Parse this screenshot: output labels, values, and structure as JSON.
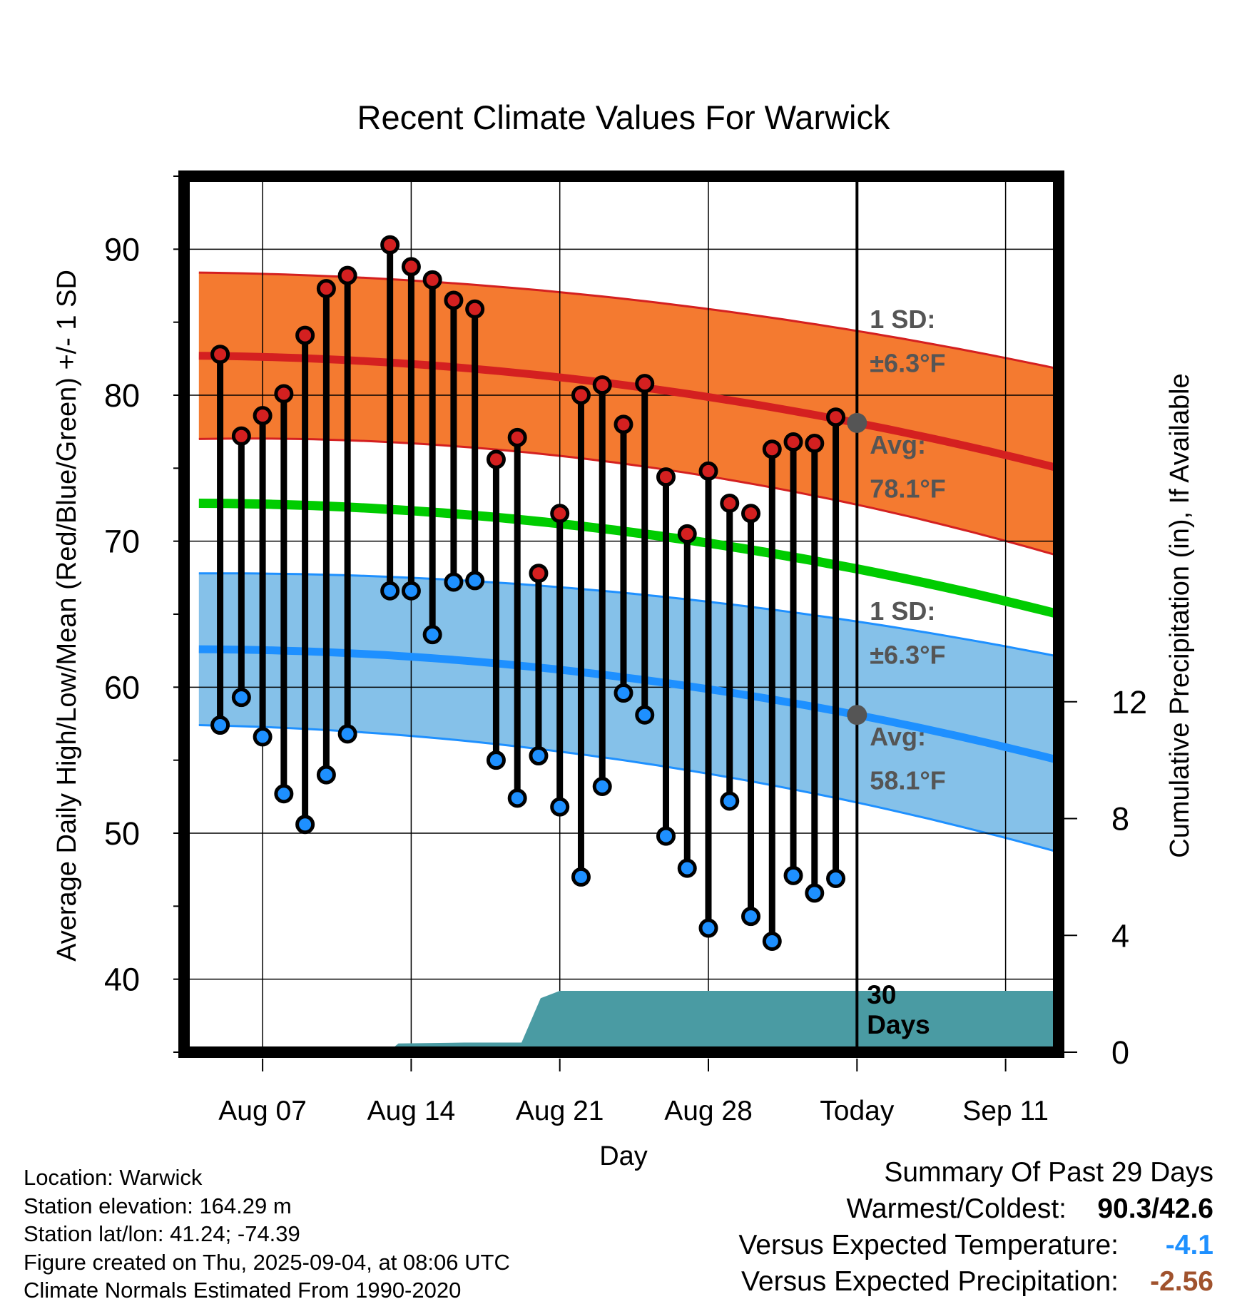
{
  "chart_data": {
    "type": "line",
    "title": "Recent Climate Values For Warwick",
    "xlabel": "Day",
    "ylabel": "Average Daily High/Low/Mean (Red/Blue/Green) +/- 1 SD",
    "y2label": "Cumulative Precipitation (in), If Available",
    "x_tick_labels": [
      "Aug 07",
      "Aug 14",
      "Aug 21",
      "Aug 28",
      "Today",
      "Sep 11"
    ],
    "x_tick_days": [
      7,
      14,
      21,
      28,
      35,
      42
    ],
    "xlim": [
      3.3,
      44.5
    ],
    "ylim": [
      35,
      95
    ],
    "yticks": [
      40,
      50,
      60,
      70,
      80,
      90
    ],
    "y2lim": [
      0,
      30
    ],
    "y2ticks": [
      0,
      4,
      8,
      12
    ],
    "grid": true,
    "today_day": 35,
    "today_label": "30\nDays",
    "normals": {
      "days": [
        4,
        35,
        44.5
      ],
      "high_avg": [
        82.7,
        78.1,
        75.0
      ],
      "high_sd_upper": [
        88.4,
        84.4,
        81.8
      ],
      "high_sd_lower": [
        77.0,
        72.5,
        69.0
      ],
      "low_avg": [
        62.6,
        58.1,
        55.0
      ],
      "low_sd_upper": [
        67.8,
        64.5,
        62.1
      ],
      "low_sd_lower": [
        57.4,
        52.1,
        48.7
      ],
      "mean_avg": [
        72.6,
        68.1,
        65.0
      ]
    },
    "annotations": {
      "high_sd": {
        "line1": "1 SD:",
        "line2": "±6.3°F"
      },
      "high_avg": {
        "line1": "Avg:",
        "line2": "78.1°F"
      },
      "low_sd": {
        "line1": "1 SD:",
        "line2": "±6.3°F"
      },
      "low_avg": {
        "line1": "Avg:",
        "line2": "58.1°F"
      }
    },
    "series": [
      {
        "name": "High",
        "days": [
          5,
          6,
          7,
          8,
          9,
          10,
          11,
          13,
          14,
          15,
          16,
          17,
          18,
          19,
          20,
          21,
          22,
          23,
          24,
          25,
          26,
          27,
          28,
          29,
          30,
          31,
          32,
          33,
          34
        ],
        "values": [
          82.8,
          77.2,
          78.6,
          80.1,
          84.1,
          87.3,
          88.2,
          90.3,
          88.8,
          87.9,
          86.5,
          85.9,
          75.6,
          77.1,
          67.8,
          71.9,
          80.0,
          80.7,
          78.0,
          80.8,
          74.4,
          70.5,
          74.8,
          72.6,
          71.9,
          76.3,
          76.8,
          76.7,
          78.5
        ]
      },
      {
        "name": "Low",
        "days": [
          5,
          6,
          7,
          8,
          9,
          10,
          11,
          13,
          14,
          15,
          16,
          17,
          18,
          19,
          20,
          21,
          22,
          23,
          24,
          25,
          26,
          27,
          28,
          29,
          30,
          31,
          32,
          33,
          34
        ],
        "values": [
          57.4,
          59.3,
          56.6,
          52.7,
          50.6,
          54.0,
          56.8,
          66.6,
          66.6,
          63.6,
          67.2,
          67.3,
          55.0,
          52.4,
          55.3,
          51.8,
          47.0,
          53.2,
          59.6,
          58.1,
          49.8,
          47.6,
          43.5,
          52.2,
          44.3,
          42.6,
          47.1,
          45.9,
          46.9
        ]
      }
    ],
    "precip": {
      "days": [
        3.3,
        12.9,
        13.4,
        16.5,
        19.2,
        20.1,
        21.0,
        44.5
      ],
      "values": [
        0,
        0,
        0.3,
        0.33,
        0.33,
        1.85,
        2.1,
        2.1
      ]
    }
  },
  "info": {
    "location": "Location: Warwick",
    "elevation": "Station elevation: 164.29 m",
    "latlon": "Station lat/lon: 41.24; -74.39",
    "created": "Figure created on Thu, 2025-09-04, at 08:06 UTC",
    "normals": "Climate Normals Estimated From 1990-2020"
  },
  "summary": {
    "title": "Summary Of Past 29 Days",
    "warmest_label": "Warmest/Coldest:",
    "warmest_value": "90.3/42.6",
    "temp_label": "Versus Expected Temperature:",
    "temp_value": "-4.1",
    "temp_color": "#1e90ff",
    "precip_label": "Versus Expected Precipitation:",
    "precip_value": "-2.56",
    "precip_color": "#a0522d"
  },
  "colors": {
    "high_band": "#f47a30",
    "high_line": "#d42020",
    "low_band": "#85c1e9",
    "low_line": "#1e90ff",
    "mean_line": "#00cc00",
    "precip_fill": "#4a9ba3",
    "annotation_text": "#555555"
  }
}
